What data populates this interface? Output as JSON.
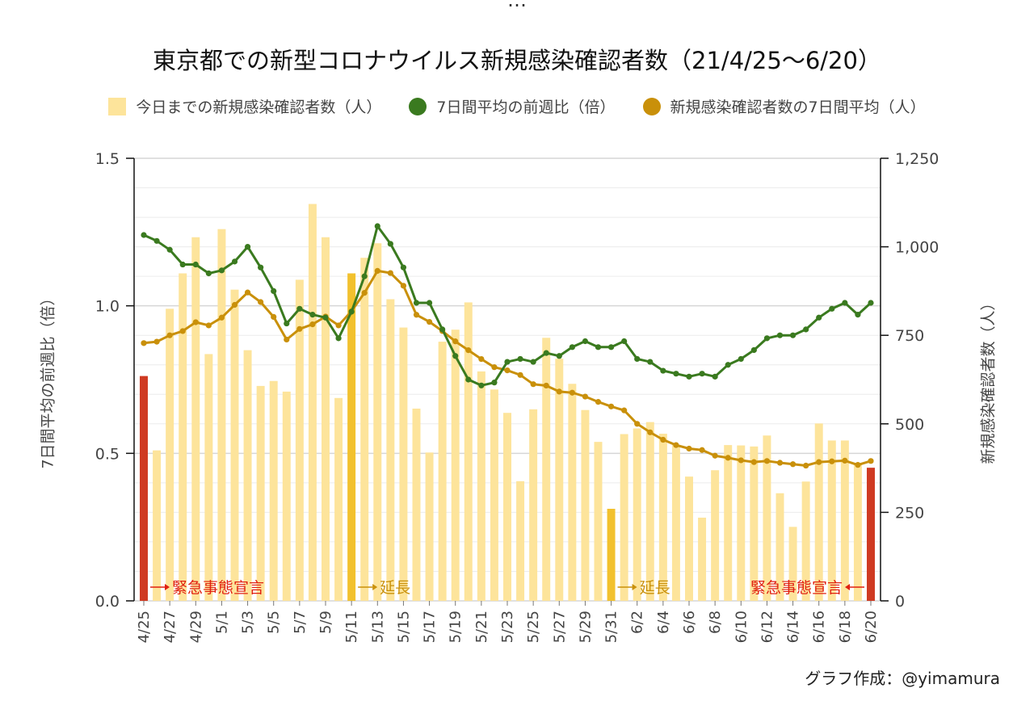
{
  "colors": {
    "bar": "#fde49b",
    "bar_extension": "#f2c12e",
    "bar_declaration": "#cf3a22",
    "ratio_line": "#3a7a1f",
    "avg_line": "#c9900a",
    "annotation_red": "#e02010",
    "annotation_gold": "#c9900a"
  },
  "header_partial": "…",
  "credit": "グラフ作成：@yimamura",
  "chart_data": {
    "type": "bar",
    "title": "東京都での新型コロナウイルス新規感染確認者数（21/4/25〜6/20）",
    "legend_position": "top",
    "grid": true,
    "categories": [
      "4/25",
      "4/26",
      "4/27",
      "4/28",
      "4/29",
      "4/30",
      "5/1",
      "5/2",
      "5/3",
      "5/4",
      "5/5",
      "5/6",
      "5/7",
      "5/8",
      "5/9",
      "5/10",
      "5/11",
      "5/12",
      "5/13",
      "5/14",
      "5/15",
      "5/16",
      "5/17",
      "5/18",
      "5/19",
      "5/20",
      "5/21",
      "5/22",
      "5/23",
      "5/24",
      "5/25",
      "5/26",
      "5/27",
      "5/28",
      "5/29",
      "5/30",
      "5/31",
      "6/1",
      "6/2",
      "6/3",
      "6/4",
      "6/5",
      "6/6",
      "6/7",
      "6/8",
      "6/9",
      "6/10",
      "6/11",
      "6/12",
      "6/13",
      "6/14",
      "6/15",
      "6/16",
      "6/17",
      "6/18",
      "6/19",
      "6/20"
    ],
    "tick_labels": [
      "4/25",
      "4/27",
      "4/29",
      "5/1",
      "5/3",
      "5/5",
      "5/7",
      "5/9",
      "5/11",
      "5/13",
      "5/15",
      "5/17",
      "5/19",
      "5/21",
      "5/23",
      "5/25",
      "5/27",
      "5/29",
      "5/31",
      "6/2",
      "6/4",
      "6/6",
      "6/8",
      "6/10",
      "6/12",
      "6/14",
      "6/16",
      "6/18",
      "6/20"
    ],
    "y_left": {
      "label": "7日間平均の前週比（倍）",
      "range": [
        0,
        1.5
      ],
      "ticks": [
        "0.0",
        "0.5",
        "1.0",
        "1.5"
      ]
    },
    "y_right": {
      "label": "新規感染確認者数（人）",
      "range": [
        0,
        1250
      ],
      "ticks": [
        "0",
        "250",
        "500",
        "750",
        "1,000",
        "1,250"
      ]
    },
    "series": [
      {
        "name": "今日までの新規感染確認者数（人）",
        "kind": "bar",
        "axis": "right",
        "values": [
          635,
          425,
          825,
          925,
          1027,
          697,
          1050,
          879,
          708,
          607,
          621,
          591,
          907,
          1121,
          1027,
          573,
          925,
          969,
          1010,
          852,
          772,
          543,
          419,
          732,
          766,
          843,
          648,
          597,
          531,
          338,
          541,
          743,
          684,
          613,
          539,
          449,
          260,
          471,
          487,
          505,
          472,
          440,
          351,
          235,
          369,
          440,
          439,
          436,
          467,
          304,
          209,
          337,
          501,
          453,
          453,
          388,
          376
        ],
        "highlight_color_keys": {
          "0": "bar_declaration",
          "16": "bar_extension",
          "36": "bar_extension",
          "56": "bar_declaration"
        }
      },
      {
        "name": "7日間平均の前週比（倍）",
        "kind": "line",
        "axis": "left",
        "values": [
          1.24,
          1.22,
          1.19,
          1.14,
          1.14,
          1.11,
          1.12,
          1.15,
          1.2,
          1.13,
          1.05,
          0.94,
          0.99,
          0.97,
          0.96,
          0.89,
          0.98,
          1.1,
          1.27,
          1.21,
          1.13,
          1.01,
          1.01,
          0.92,
          0.83,
          0.75,
          0.73,
          0.74,
          0.81,
          0.82,
          0.81,
          0.84,
          0.83,
          0.86,
          0.88,
          0.86,
          0.86,
          0.88,
          0.82,
          0.81,
          0.78,
          0.77,
          0.76,
          0.77,
          0.76,
          0.8,
          0.82,
          0.85,
          0.89,
          0.9,
          0.9,
          0.92,
          0.96,
          0.99,
          1.01,
          0.97,
          1.01
        ]
      },
      {
        "name": "新規感染確認者数の7日間平均（人）",
        "kind": "line",
        "axis": "right",
        "values": [
          728,
          732,
          750,
          762,
          787,
          778,
          800,
          836,
          871,
          844,
          802,
          738,
          768,
          781,
          803,
          778,
          818,
          870,
          932,
          926,
          890,
          808,
          788,
          762,
          733,
          708,
          683,
          660,
          651,
          638,
          612,
          608,
          591,
          588,
          577,
          562,
          549,
          538,
          500,
          476,
          455,
          440,
          430,
          426,
          410,
          404,
          397,
          392,
          395,
          390,
          386,
          382,
          392,
          394,
          396,
          384,
          395
        ]
      }
    ],
    "annotations": [
      {
        "text": "緊急事態宣言",
        "at": "4/25",
        "arrow": "right",
        "color_key": "annotation_red"
      },
      {
        "text": "延長",
        "at": "5/11",
        "arrow": "right",
        "color_key": "annotation_gold"
      },
      {
        "text": "延長",
        "at": "5/31",
        "arrow": "right",
        "color_key": "annotation_gold"
      },
      {
        "text": "緊急事態宣言",
        "at": "6/20",
        "arrow": "left",
        "color_key": "annotation_red"
      }
    ]
  }
}
